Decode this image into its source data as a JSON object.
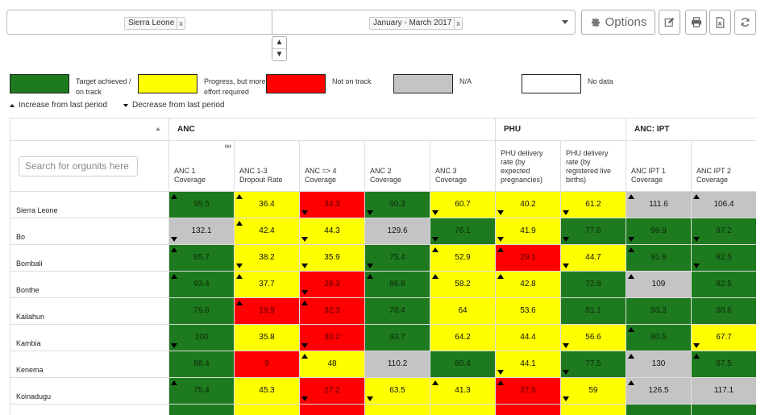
{
  "toolbar": {
    "org_unit": "Sierra Leone",
    "period": "January - March 2017",
    "chip_remove": "x",
    "options_label": "Options",
    "spin_up": "▲",
    "spin_down": "▼"
  },
  "legend": [
    {
      "label": "Target achieved / on track",
      "color": "#1e7a1e",
      "left": 12
    },
    {
      "label": "Progress, but more effort required",
      "color": "#ffff00",
      "left": 171
    },
    {
      "label": "Not on track",
      "color": "#ff0000",
      "left": 330
    },
    {
      "label": "N/A",
      "color": "#c4c4c4",
      "left": 488
    },
    {
      "label": "No data",
      "color": "#ffffff",
      "left": 647
    }
  ],
  "trend_legend": {
    "increase": "Increase from last period",
    "decrease": "Decrease from last period"
  },
  "table": {
    "groups": [
      {
        "label": "ANC",
        "span": 5
      },
      {
        "label": "PHU",
        "span": 2
      },
      {
        "label": "ANC: IPT",
        "span": 2
      }
    ],
    "search_placeholder": "Search for orgunits here",
    "columns": [
      "ANC 1 Coverage",
      "ANC 1-3 Dropout Rate",
      "ANC => 4 Coverage",
      "ANC 2 Coverage",
      "ANC 3 Coverage",
      "PHU delivery rate (by expected pregnancies)",
      "PHU delivery rate (by registered live births)",
      "ANC IPT 1 Coverage",
      "ANC IPT 2 Coverage"
    ],
    "rows": [
      {
        "name": "Sierra Leone",
        "cells": [
          {
            "v": "95.5",
            "c": "g",
            "t": "up"
          },
          {
            "v": "36.4",
            "c": "y",
            "t": "up"
          },
          {
            "v": "34.3",
            "c": "r",
            "t": "down"
          },
          {
            "v": "90.3",
            "c": "g",
            "t": "down"
          },
          {
            "v": "60.7",
            "c": "y",
            "t": "down"
          },
          {
            "v": "40.2",
            "c": "y",
            "t": "down"
          },
          {
            "v": "61.2",
            "c": "y",
            "t": "down"
          },
          {
            "v": "111.6",
            "c": "n",
            "t": "up"
          },
          {
            "v": "106.4",
            "c": "n",
            "t": "up"
          }
        ]
      },
      {
        "name": "Bo",
        "cells": [
          {
            "v": "132.1",
            "c": "n",
            "t": "down"
          },
          {
            "v": "42.4",
            "c": "y",
            "t": "up"
          },
          {
            "v": "44.3",
            "c": "y",
            "t": "down"
          },
          {
            "v": "129.6",
            "c": "n",
            "t": ""
          },
          {
            "v": "76.1",
            "c": "g",
            "t": "down"
          },
          {
            "v": "41.9",
            "c": "y",
            "t": "down"
          },
          {
            "v": "77.6",
            "c": "g",
            "t": "down"
          },
          {
            "v": "99.9",
            "c": "g",
            "t": "down"
          },
          {
            "v": "97.2",
            "c": "g",
            "t": "down"
          }
        ]
      },
      {
        "name": "Bombali",
        "cells": [
          {
            "v": "85.7",
            "c": "g",
            "t": "up"
          },
          {
            "v": "38.2",
            "c": "y",
            "t": "down"
          },
          {
            "v": "35.9",
            "c": "y",
            "t": "down"
          },
          {
            "v": "75.4",
            "c": "g",
            "t": "down"
          },
          {
            "v": "52.9",
            "c": "y",
            "t": "up"
          },
          {
            "v": "29.1",
            "c": "r",
            "t": "up"
          },
          {
            "v": "44.7",
            "c": "y",
            "t": "down"
          },
          {
            "v": "91.9",
            "c": "g",
            "t": "up"
          },
          {
            "v": "82.5",
            "c": "g",
            "t": "down"
          }
        ]
      },
      {
        "name": "Bonthe",
        "cells": [
          {
            "v": "93.4",
            "c": "g",
            "t": "up"
          },
          {
            "v": "37.7",
            "c": "y",
            "t": "up"
          },
          {
            "v": "28.3",
            "c": "r",
            "t": "down"
          },
          {
            "v": "86.8",
            "c": "g",
            "t": "up"
          },
          {
            "v": "58.2",
            "c": "y",
            "t": "up"
          },
          {
            "v": "42.8",
            "c": "y",
            "t": "up"
          },
          {
            "v": "72.8",
            "c": "g",
            "t": ""
          },
          {
            "v": "109",
            "c": "n",
            "t": "up"
          },
          {
            "v": "82.5",
            "c": "g",
            "t": ""
          }
        ]
      },
      {
        "name": "Kailahun",
        "cells": [
          {
            "v": "79.8",
            "c": "g",
            "t": ""
          },
          {
            "v": "19.9",
            "c": "r",
            "t": "up"
          },
          {
            "v": "32.3",
            "c": "r",
            "t": "up"
          },
          {
            "v": "78.4",
            "c": "g",
            "t": ""
          },
          {
            "v": "64",
            "c": "y",
            "t": ""
          },
          {
            "v": "53.6",
            "c": "y",
            "t": ""
          },
          {
            "v": "81.1",
            "c": "g",
            "t": ""
          },
          {
            "v": "93.3",
            "c": "g",
            "t": ""
          },
          {
            "v": "80.6",
            "c": "g",
            "t": ""
          }
        ]
      },
      {
        "name": "Kambia",
        "cells": [
          {
            "v": "100",
            "c": "g",
            "t": "down"
          },
          {
            "v": "35.8",
            "c": "y",
            "t": ""
          },
          {
            "v": "30.2",
            "c": "r",
            "t": "down"
          },
          {
            "v": "93.7",
            "c": "g",
            "t": ""
          },
          {
            "v": "64.2",
            "c": "y",
            "t": ""
          },
          {
            "v": "44.4",
            "c": "y",
            "t": ""
          },
          {
            "v": "56.6",
            "c": "y",
            "t": "down"
          },
          {
            "v": "80.5",
            "c": "g",
            "t": "up"
          },
          {
            "v": "67.7",
            "c": "y",
            "t": "down"
          }
        ]
      },
      {
        "name": "Kenema",
        "cells": [
          {
            "v": "88.4",
            "c": "g",
            "t": ""
          },
          {
            "v": "9",
            "c": "r",
            "t": ""
          },
          {
            "v": "48",
            "c": "y",
            "t": "up"
          },
          {
            "v": "110.2",
            "c": "n",
            "t": ""
          },
          {
            "v": "80.4",
            "c": "g",
            "t": ""
          },
          {
            "v": "44.1",
            "c": "y",
            "t": "down"
          },
          {
            "v": "77.5",
            "c": "g",
            "t": "down"
          },
          {
            "v": "130",
            "c": "n",
            "t": "up"
          },
          {
            "v": "87.5",
            "c": "g",
            "t": "up"
          }
        ]
      },
      {
        "name": "Koinadugu",
        "cells": [
          {
            "v": "75.4",
            "c": "g",
            "t": "up"
          },
          {
            "v": "45.3",
            "c": "y",
            "t": ""
          },
          {
            "v": "27.2",
            "c": "r",
            "t": "down"
          },
          {
            "v": "63.5",
            "c": "y",
            "t": "down"
          },
          {
            "v": "41.3",
            "c": "y",
            "t": "up"
          },
          {
            "v": "27.5",
            "c": "r",
            "t": "up"
          },
          {
            "v": "59",
            "c": "y",
            "t": "down"
          },
          {
            "v": "126.5",
            "c": "n",
            "t": "up"
          },
          {
            "v": "117.1",
            "c": "n",
            "t": ""
          }
        ]
      },
      {
        "name": "",
        "cells": [
          {
            "v": "",
            "c": "g",
            "t": ""
          },
          {
            "v": "",
            "c": "y",
            "t": ""
          },
          {
            "v": "",
            "c": "r",
            "t": ""
          },
          {
            "v": "",
            "c": "y",
            "t": ""
          },
          {
            "v": "",
            "c": "y",
            "t": ""
          },
          {
            "v": "",
            "c": "r",
            "t": ""
          },
          {
            "v": "",
            "c": "y",
            "t": ""
          },
          {
            "v": "",
            "c": "g",
            "t": ""
          },
          {
            "v": "",
            "c": "g",
            "t": ""
          }
        ]
      }
    ]
  }
}
